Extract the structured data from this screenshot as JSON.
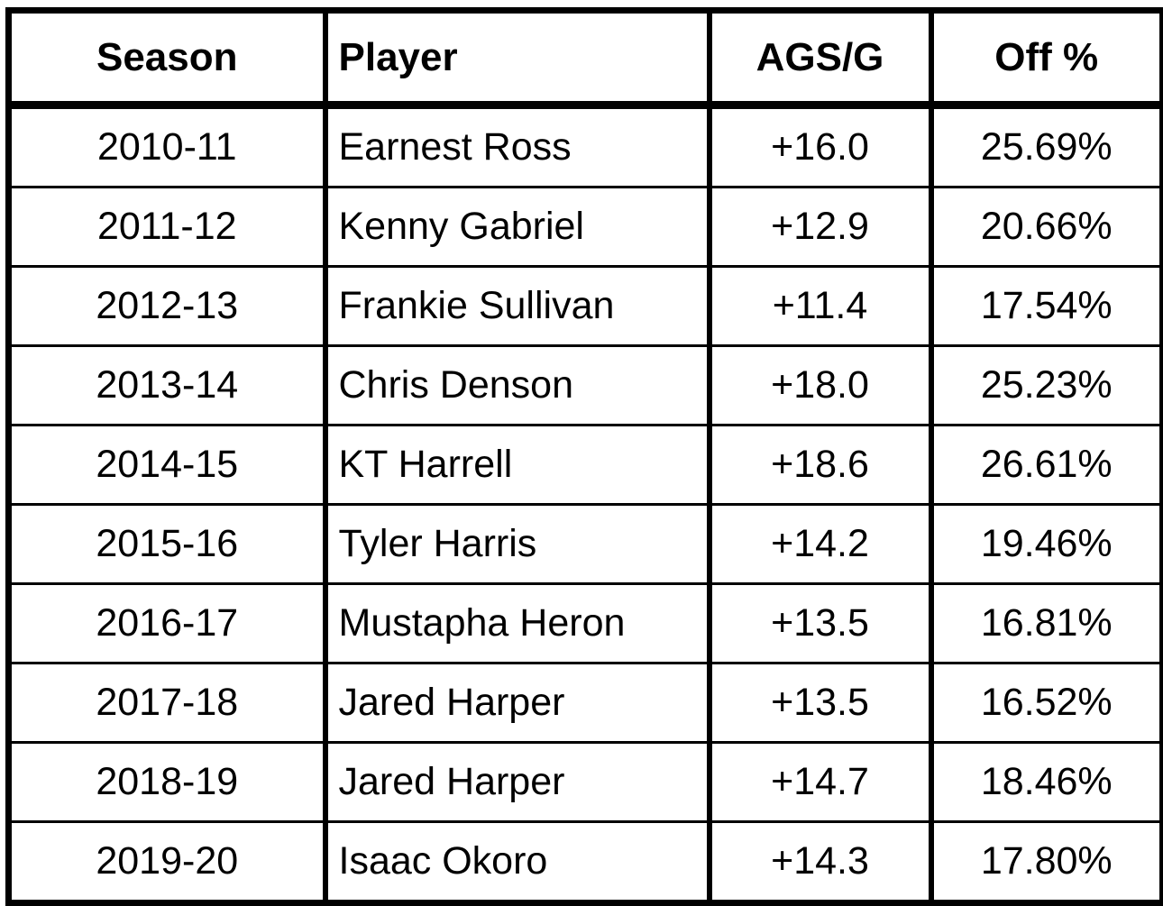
{
  "table": {
    "headers": [
      "Season",
      "Player",
      "AGS/G",
      "Off %"
    ],
    "rows": [
      [
        "2010-11",
        "Earnest Ross",
        "+16.0",
        "25.69%"
      ],
      [
        "2011-12",
        "Kenny Gabriel",
        "+12.9",
        "20.66%"
      ],
      [
        "2012-13",
        "Frankie Sullivan",
        "+11.4",
        "17.54%"
      ],
      [
        "2013-14",
        "Chris Denson",
        "+18.0",
        "25.23%"
      ],
      [
        "2014-15",
        "KT Harrell",
        "+18.6",
        "26.61%"
      ],
      [
        "2015-16",
        "Tyler Harris",
        "+14.2",
        "19.46%"
      ],
      [
        "2016-17",
        "Mustapha Heron",
        "+13.5",
        "16.81%"
      ],
      [
        "2017-18",
        "Jared Harper",
        "+13.5",
        "16.52%"
      ],
      [
        "2018-19",
        "Jared Harper",
        "+14.7",
        "18.46%"
      ],
      [
        "2019-20",
        "Isaac Okoro",
        "+14.3",
        "17.80%"
      ]
    ]
  }
}
